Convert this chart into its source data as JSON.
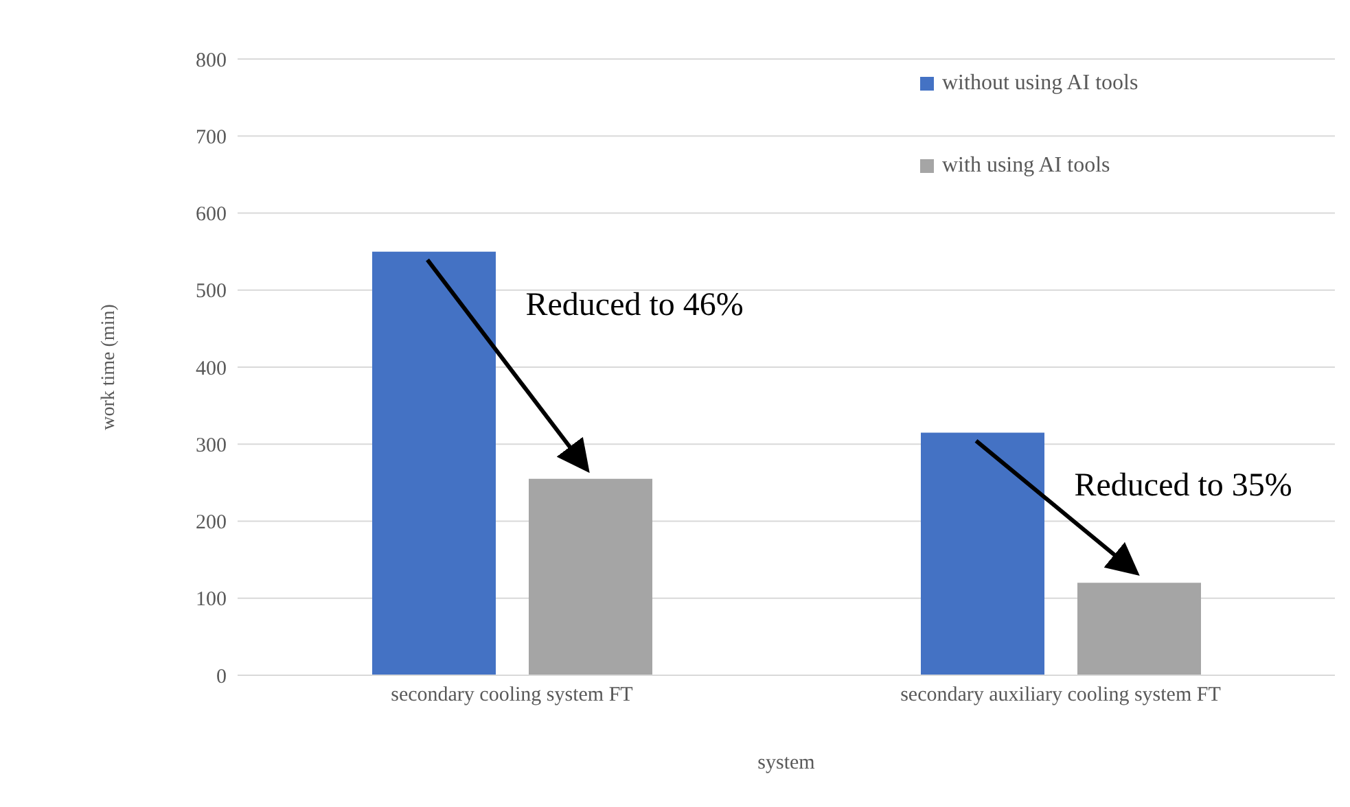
{
  "chart_data": {
    "type": "bar",
    "xlabel": "system",
    "ylabel": "work time (min)",
    "categories": [
      "secondary cooling system FT",
      "secondary auxiliary cooling system FT"
    ],
    "series": [
      {
        "name": "without using AI tools",
        "color": "#4472c4",
        "values": [
          550,
          315
        ]
      },
      {
        "name": "with using AI tools",
        "color": "#a5a5a5",
        "values": [
          255,
          120
        ]
      }
    ],
    "ylim": [
      0,
      800
    ],
    "yticks": [
      0,
      100,
      200,
      300,
      400,
      500,
      600,
      700,
      800
    ],
    "grid": "y",
    "legend": "top right",
    "annotations": [
      "Reduced to 46%",
      "Reduced to 35%"
    ]
  }
}
